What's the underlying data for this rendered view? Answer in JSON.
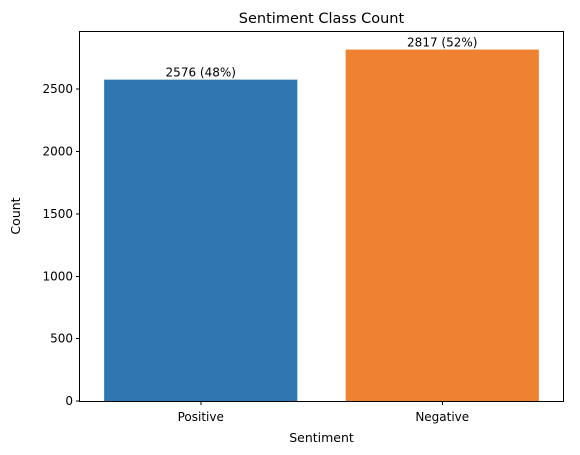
{
  "chart_data": {
    "type": "bar",
    "title": "Sentiment Class Count",
    "xlabel": "Sentiment",
    "ylabel": "Count",
    "categories": [
      "Positive",
      "Negative"
    ],
    "values": [
      2576,
      2817
    ],
    "data_labels": [
      "2576 (48%)",
      "2817 (52%)"
    ],
    "colors": [
      "#2f77b1",
      "#ee8230"
    ],
    "ylim": [
      0,
      2957.85
    ],
    "yticks": [
      0,
      500,
      1000,
      1500,
      2000,
      2500
    ],
    "ytick_labels": [
      "0",
      "500",
      "1000",
      "1500",
      "2000",
      "2500"
    ],
    "grid": false,
    "legend": "none"
  }
}
